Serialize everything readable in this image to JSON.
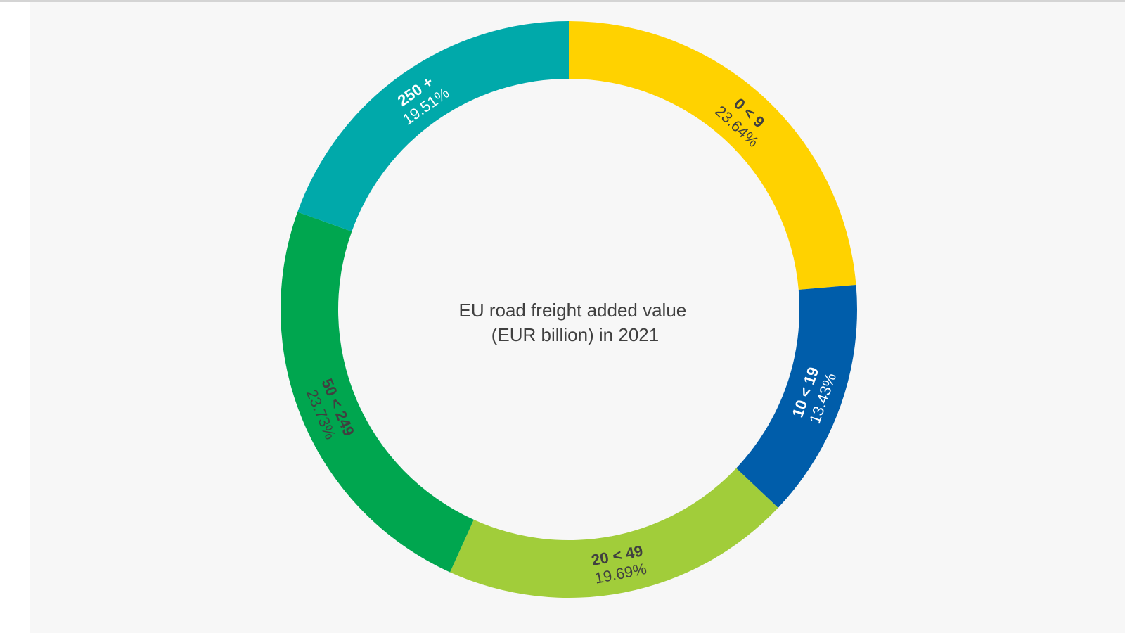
{
  "chart_data": {
    "type": "pie",
    "title": "EU road freight added value (EUR billion) in 2021",
    "title_lines": [
      "EU road freight added value",
      "(EUR billion) in 2021"
    ],
    "donut": true,
    "legend": "none",
    "slices": [
      {
        "label": "0 < 9",
        "value": 23.64,
        "value_label": "23.64%",
        "color": "#FFD200",
        "text_color": "#404040"
      },
      {
        "label": "10 < 19",
        "value": 13.43,
        "value_label": "13.43%",
        "color": "#005DAA",
        "text_color": "#ffffff"
      },
      {
        "label": "20 < 49",
        "value": 19.69,
        "value_label": "19.69%",
        "color": "#A1CD3A",
        "text_color": "#404040"
      },
      {
        "label": "50 < 249",
        "value": 23.73,
        "value_label": "23.73%",
        "color": "#00A64F",
        "text_color": "#404040"
      },
      {
        "label": "250 +",
        "value": 19.51,
        "value_label": "19.51%",
        "color": "#00A9AA",
        "text_color": "#ffffff"
      }
    ]
  }
}
